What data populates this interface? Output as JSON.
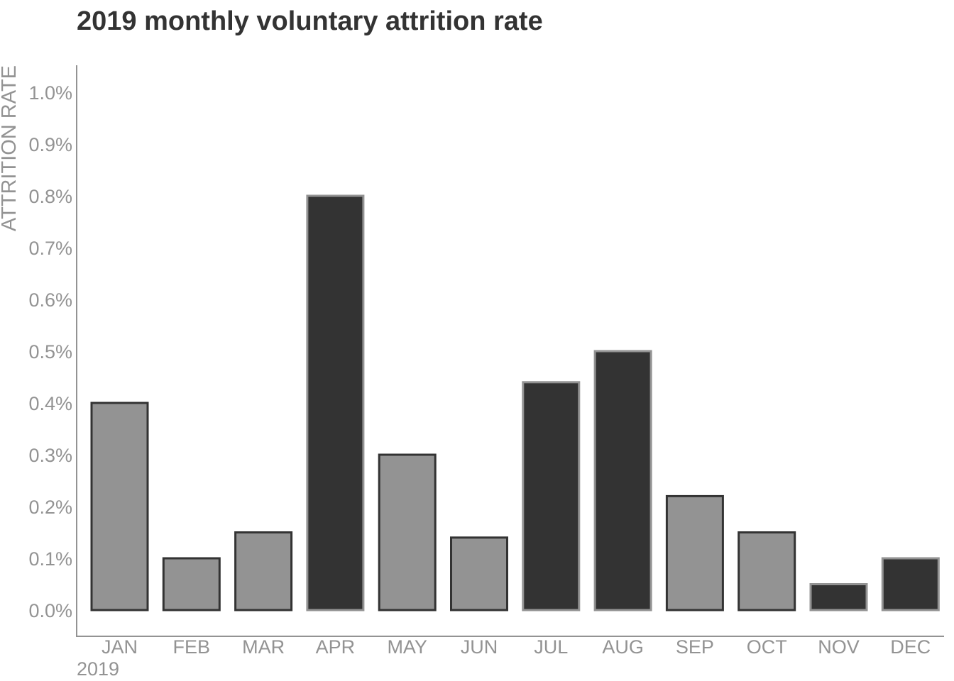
{
  "chart_data": {
    "type": "bar",
    "title": "2019 monthly voluntary attrition rate",
    "ylabel": "ATTRITION RATE",
    "xlabel": "",
    "x_group_label": "2019",
    "categories": [
      "JAN",
      "FEB",
      "MAR",
      "APR",
      "MAY",
      "JUN",
      "JUL",
      "AUG",
      "SEP",
      "OCT",
      "NOV",
      "DEC"
    ],
    "values": [
      0.4,
      0.1,
      0.15,
      0.8,
      0.3,
      0.14,
      0.44,
      0.5,
      0.22,
      0.15,
      0.05,
      0.1
    ],
    "value_unit": "%",
    "highlight": [
      false,
      false,
      false,
      true,
      false,
      false,
      true,
      true,
      false,
      false,
      true,
      true
    ],
    "ylim": [
      0,
      1.0
    ],
    "yticks": [
      0.0,
      0.1,
      0.2,
      0.3,
      0.4,
      0.5,
      0.6,
      0.7,
      0.8,
      0.9,
      1.0
    ],
    "ytick_labels": [
      "0.0%",
      "0.1%",
      "0.2%",
      "0.3%",
      "0.4%",
      "0.5%",
      "0.6%",
      "0.7%",
      "0.8%",
      "0.9%",
      "1.0%"
    ],
    "grid": false,
    "legend": "none",
    "colors": {
      "bar_fill": "#939393",
      "bar_stroke": "#333333",
      "highlight_fill": "#333333",
      "highlight_stroke": "#939393",
      "axis": "#939393",
      "title": "#333333"
    }
  }
}
